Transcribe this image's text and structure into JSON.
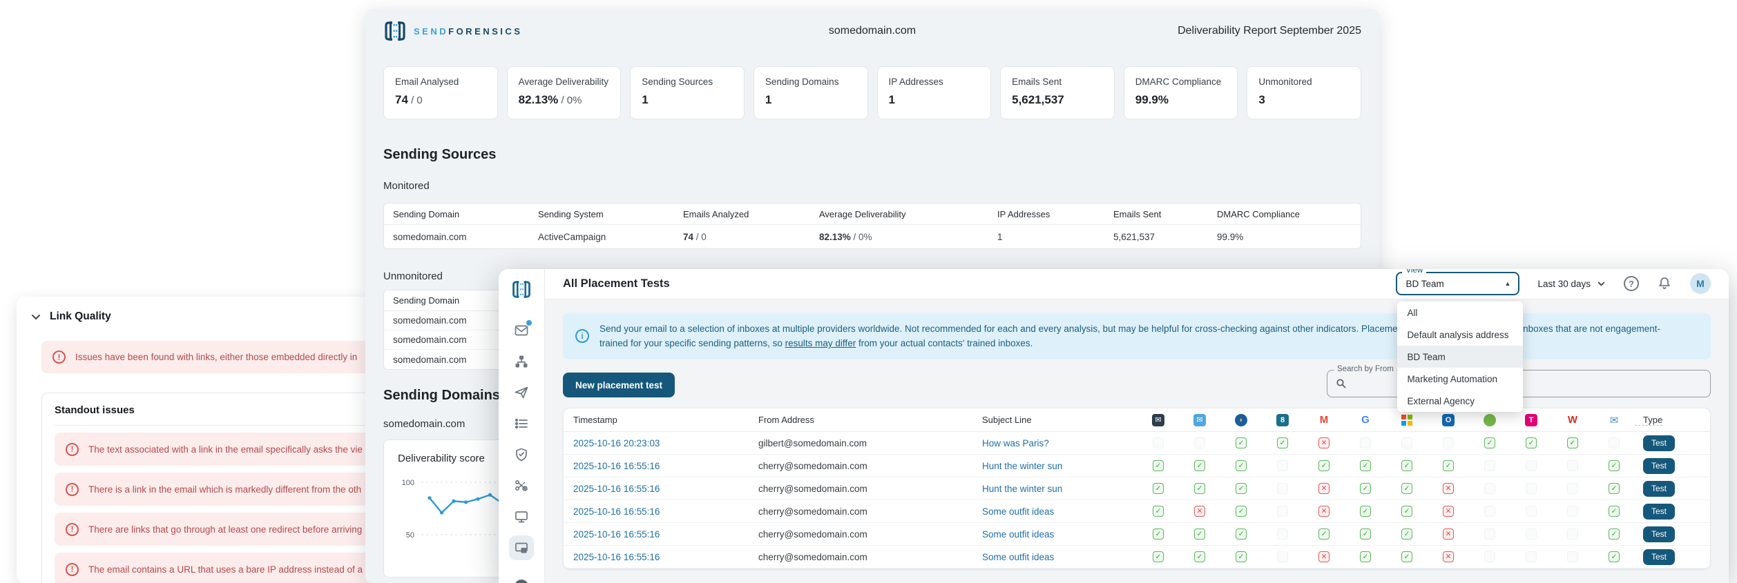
{
  "report_window": {
    "brand": {
      "name_light": "SEND",
      "name_dark": "FORENSICS"
    },
    "header": {
      "domain": "somedomain.com",
      "title": "Deliverability Report September 2025"
    },
    "stats": [
      {
        "label": "Email Analysed",
        "value": "74",
        "sub": " / 0"
      },
      {
        "label": "Average Deliverability",
        "value": "82.13%",
        "sub": " / 0%"
      },
      {
        "label": "Sending Sources",
        "value": "1",
        "sub": ""
      },
      {
        "label": "Sending Domains",
        "value": "1",
        "sub": ""
      },
      {
        "label": "IP Addresses",
        "value": "1",
        "sub": ""
      },
      {
        "label": "Emails Sent",
        "value": "5,621,537",
        "sub": ""
      },
      {
        "label": "DMARC Compliance",
        "value": "99.9%",
        "sub": ""
      },
      {
        "label": "Unmonitored",
        "value": "3",
        "sub": ""
      }
    ],
    "sending_sources": {
      "heading": "Sending Sources",
      "monitored_label": "Monitored",
      "monitored_table": {
        "headers": [
          "Sending Domain",
          "Sending System",
          "Emails Analyzed",
          "Average Deliverability",
          "IP Addresses",
          "Emails Sent",
          "DMARC Compliance"
        ],
        "row": {
          "sending_domain": "somedomain.com",
          "sending_system": "ActiveCampaign",
          "emails_analyzed_bold": "74",
          "emails_analyzed_rest": " / 0",
          "avg_deliverability_bold": "82.13%",
          "avg_deliverability_rest": " / 0%",
          "ip_addresses": "1",
          "emails_sent": "5,621,537",
          "dmarc_compliance": "99.9%"
        }
      },
      "unmonitored_label": "Unmonitored",
      "unmonitored_table": {
        "header": "Sending Domain",
        "rows": [
          "somedomain.com",
          "somedomain.com",
          "somedomain.com"
        ]
      }
    },
    "sending_domains": {
      "heading": "Sending Domains",
      "domain": "somedomain.com",
      "chart": {
        "type": "line",
        "title": "Deliverability score",
        "y_ticks": [
          "100",
          "50"
        ],
        "ylim": [
          50,
          100
        ],
        "values": [
          85,
          71,
          82,
          81,
          84,
          88,
          80,
          77,
          85
        ],
        "line_color": "#2e9ad6",
        "grid": "dashed"
      }
    }
  },
  "link_quality_window": {
    "title": "Link Quality",
    "alert": "Issues have been found with links, either those embedded directly in",
    "standout_title": "Standout issues",
    "issues": [
      "The text associated with a link in the email specifically asks the vie",
      "There is a link in the email which is markedly different from the oth",
      "There are links that go through at least one redirect before arriving",
      "The email contains a URL that uses a bare IP address instead of a"
    ]
  },
  "placement_window": {
    "title": "All Placement Tests",
    "view": {
      "label": "View",
      "value": "BD Team",
      "selected": "BD Team",
      "options": [
        "All",
        "Default analysis address",
        "BD Team",
        "Marketing Automation",
        "External Agency"
      ]
    },
    "date_range": "Last 30 days",
    "help_glyph": "?",
    "avatar_initial": "M",
    "banner": {
      "info_glyph": "i",
      "text_before": "Send your email to a selection of inboxes at multiple providers worldwide. Not recommended for each and every analysis, but may be helpful for cross-checking against other indicators. Placement testing uses generic 'robot' inboxes that are not engagement-trained for your specific sending patterns, so ",
      "underlined": "results may differ",
      "text_after": " from your actual contacts' trained inboxes."
    },
    "new_test_button": "New placement test",
    "search_label": "Search by From",
    "sidebar": {
      "icons": [
        "mail-icon",
        "sitemap-icon",
        "send-icon",
        "list-icon",
        "shield-icon",
        "snip-icon",
        "monitor-icon",
        "placement-tests-icon",
        "partial-icon"
      ],
      "selected": "placement-tests-icon"
    },
    "table": {
      "columns": [
        "Timestamp",
        "From Address",
        "Subject Line"
      ],
      "type_header": "Type",
      "providers": [
        {
          "name": "provider-darknavy-mail-icon",
          "shape": "square",
          "bg": "#2e3d4e",
          "glyph": "✉",
          "fg": "#ffffff"
        },
        {
          "name": "provider-lightblue-mail-icon",
          "shape": "square",
          "bg": "#4fa8dd",
          "glyph": "✉",
          "fg": "#ffffff"
        },
        {
          "name": "provider-blue-circle-icon",
          "shape": "circle",
          "bg": "#1a5d9e",
          "glyph": "◗",
          "fg": "#f3c13a"
        },
        {
          "name": "provider-teal-badge-icon",
          "shape": "square",
          "bg": "#1b6f8f",
          "glyph": "8",
          "fg": "#ffffff"
        },
        {
          "name": "gmail-icon",
          "shape": "plain",
          "bg": "",
          "glyph": "M",
          "fg": "#ea4335"
        },
        {
          "name": "google-icon",
          "shape": "plain",
          "bg": "",
          "glyph": "G",
          "fg": "#4285f4"
        },
        {
          "name": "microsoft-icon",
          "shape": "ms-grid",
          "bg": "",
          "glyph": "",
          "fg": ""
        },
        {
          "name": "outlook-icon",
          "shape": "square",
          "bg": "#1268b3",
          "glyph": "O",
          "fg": "#ffffff"
        },
        {
          "name": "provider-green-circle-icon",
          "shape": "circle",
          "bg": "#76b54a",
          "glyph": "",
          "fg": ""
        },
        {
          "name": "telekom-icon",
          "shape": "square",
          "bg": "#e20074",
          "glyph": "T",
          "fg": "#ffffff"
        },
        {
          "name": "wp-icon",
          "shape": "plain",
          "bg": "",
          "glyph": "W",
          "fg": "#d52f27"
        },
        {
          "name": "envelope-outline-icon",
          "shape": "plain",
          "bg": "",
          "glyph": "✉",
          "fg": "#4790bd"
        }
      ],
      "rows": [
        {
          "timestamp": "2025-10-16 20:23:03",
          "from": "gilbert@somedomain.com",
          "subject": "How was Paris?",
          "statuses": [
            "none",
            "none",
            "pass",
            "pass",
            "fail",
            "none",
            "none",
            "none",
            "pass",
            "pass",
            "pass",
            "none"
          ],
          "type": "Test"
        },
        {
          "timestamp": "2025-10-16 16:55:16",
          "from": "cherry@somedomain.com",
          "subject": "Hunt the winter sun",
          "statuses": [
            "pass",
            "pass",
            "pass",
            "none",
            "pass",
            "pass",
            "pass",
            "pass",
            "none",
            "none",
            "none",
            "pass"
          ],
          "type": "Test"
        },
        {
          "timestamp": "2025-10-16 16:55:16",
          "from": "cherry@somedomain.com",
          "subject": "Hunt the winter sun",
          "statuses": [
            "pass",
            "pass",
            "pass",
            "none",
            "fail",
            "pass",
            "pass",
            "fail",
            "none",
            "none",
            "none",
            "pass"
          ],
          "type": "Test"
        },
        {
          "timestamp": "2025-10-16 16:55:16",
          "from": "cherry@somedomain.com",
          "subject": "Some outfit ideas",
          "statuses": [
            "pass",
            "fail",
            "pass",
            "none",
            "fail",
            "pass",
            "pass",
            "fail",
            "none",
            "none",
            "none",
            "pass"
          ],
          "type": "Test"
        },
        {
          "timestamp": "2025-10-16 16:55:16",
          "from": "cherry@somedomain.com",
          "subject": "Some outfit ideas",
          "statuses": [
            "pass",
            "pass",
            "pass",
            "none",
            "pass",
            "pass",
            "pass",
            "fail",
            "none",
            "none",
            "none",
            "pass"
          ],
          "type": "Test"
        },
        {
          "timestamp": "2025-10-16 16:55:16",
          "from": "cherry@somedomain.com",
          "subject": "Some outfit ideas",
          "statuses": [
            "pass",
            "pass",
            "pass",
            "none",
            "fail",
            "pass",
            "pass",
            "fail",
            "none",
            "none",
            "none",
            "pass"
          ],
          "type": "Test"
        }
      ]
    }
  },
  "colors": {
    "accent_dark_blue": "#15587b",
    "brand_light_blue": "#3aa0dc",
    "brand_dark_blue": "#174a6b",
    "link_blue": "#1f6fa8",
    "banner_bg": "#def0f9",
    "banner_text": "#1c5f82",
    "alert_bg": "#fcecec",
    "alert_text": "#b5494c",
    "pass_green": "#3f9d46",
    "fail_red": "#d9534f"
  }
}
